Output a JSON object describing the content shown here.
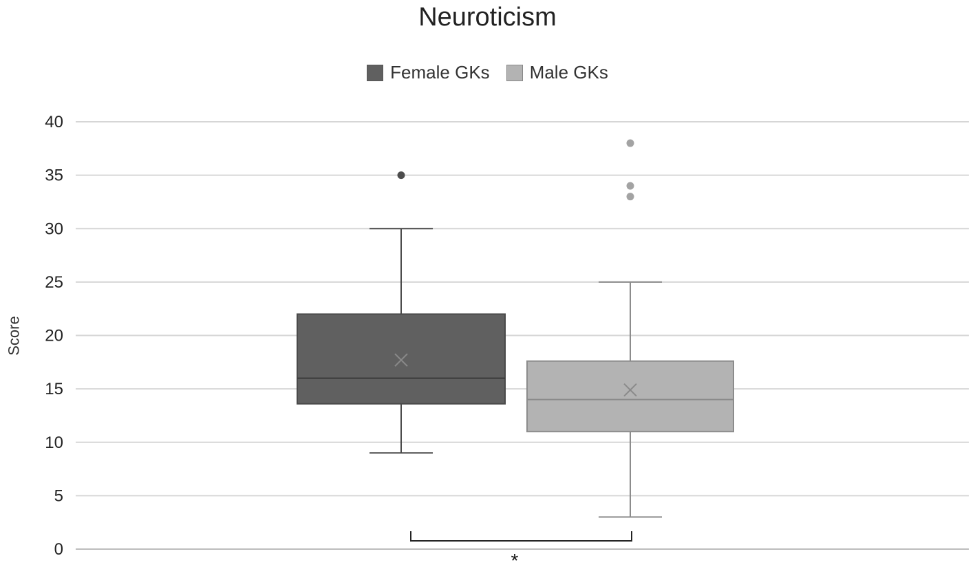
{
  "chart_data": {
    "type": "box",
    "title": "Neuroticism",
    "xlabel": "",
    "ylabel": "Score",
    "ylim": [
      0,
      40
    ],
    "yticks": [
      0,
      5,
      10,
      15,
      20,
      25,
      30,
      35,
      40
    ],
    "grid": true,
    "legend_position": "top-center",
    "series": [
      {
        "name": "Female GKs",
        "color": "#606060",
        "whisker_min": 9,
        "q1": 13.6,
        "median": 16,
        "q3": 22,
        "whisker_max": 30,
        "mean": 17.7,
        "outliers": [
          35
        ]
      },
      {
        "name": "Male GKs",
        "color": "#b3b3b3",
        "whisker_min": 3,
        "q1": 11,
        "median": 14,
        "q3": 17.6,
        "whisker_max": 25,
        "mean": 14.9,
        "outliers": [
          33,
          34,
          38
        ]
      }
    ],
    "annotations": [
      {
        "type": "significance-bracket",
        "text": "*",
        "between": [
          "Female GKs",
          "Male GKs"
        ]
      }
    ]
  }
}
